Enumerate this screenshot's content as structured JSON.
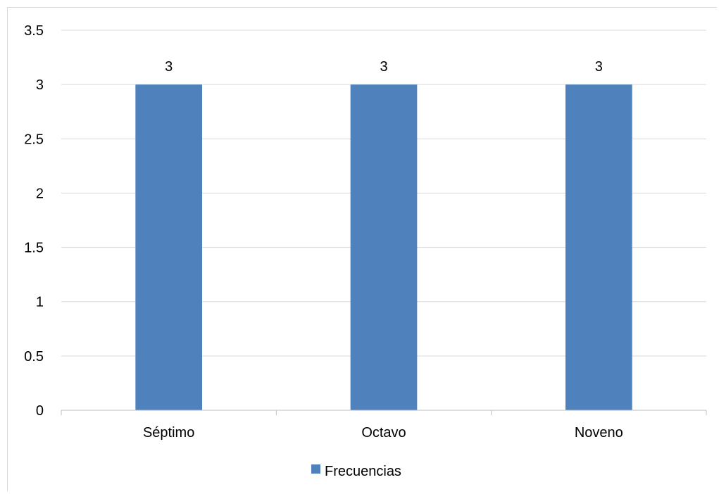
{
  "chart_data": {
    "type": "bar",
    "categories": [
      "Séptimo",
      "Octavo",
      "Noveno"
    ],
    "series": [
      {
        "name": "Frecuencias",
        "values": [
          3,
          3,
          3
        ],
        "color": "#4f81bd"
      }
    ],
    "data_labels": [
      "3",
      "3",
      "3"
    ],
    "y_ticks": [
      "0",
      "0.5",
      "1",
      "1.5",
      "2",
      "2.5",
      "3",
      "3.5"
    ],
    "ylim": [
      0,
      3.5
    ],
    "grid": true,
    "legend_position": "bottom",
    "title": "",
    "xlabel": "",
    "ylabel": ""
  }
}
